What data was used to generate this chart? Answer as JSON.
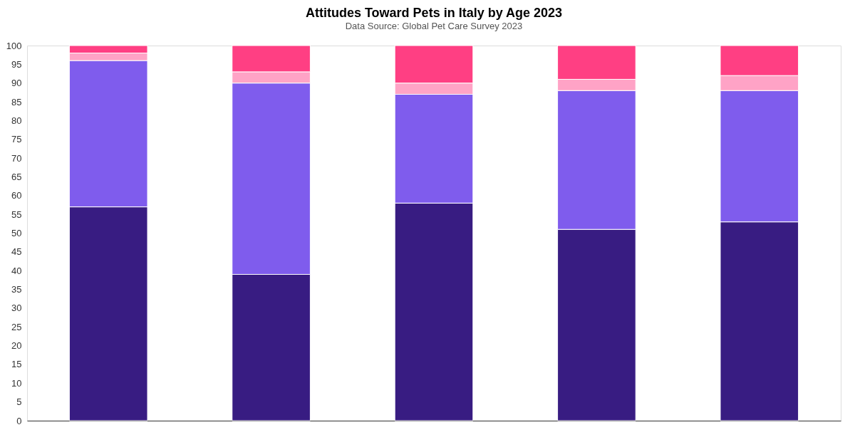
{
  "chart_data": {
    "type": "bar",
    "title": "Attitudes Toward Pets in Italy by Age 2023",
    "subtitle": "Data Source: Global Pet Care Survey 2023",
    "categories": [
      null,
      null,
      null,
      null,
      null
    ],
    "stacked": true,
    "series": [
      {
        "color": "#381c82",
        "values": [
          57,
          39,
          58,
          51,
          53
        ]
      },
      {
        "color": "#7f5ced",
        "values": [
          39,
          51,
          29,
          37,
          35
        ]
      },
      {
        "color": "#ffa3c6",
        "values": [
          2,
          3,
          3,
          3,
          4
        ]
      },
      {
        "color": "#ff3f83",
        "values": [
          2,
          7,
          10,
          9,
          8
        ]
      }
    ],
    "ylim": [
      0,
      100
    ],
    "yticks": [
      0,
      5,
      10,
      15,
      20,
      25,
      30,
      35,
      40,
      45,
      50,
      55,
      60,
      65,
      70,
      75,
      80,
      85,
      90,
      95,
      100
    ],
    "grid": false,
    "legend": false
  }
}
